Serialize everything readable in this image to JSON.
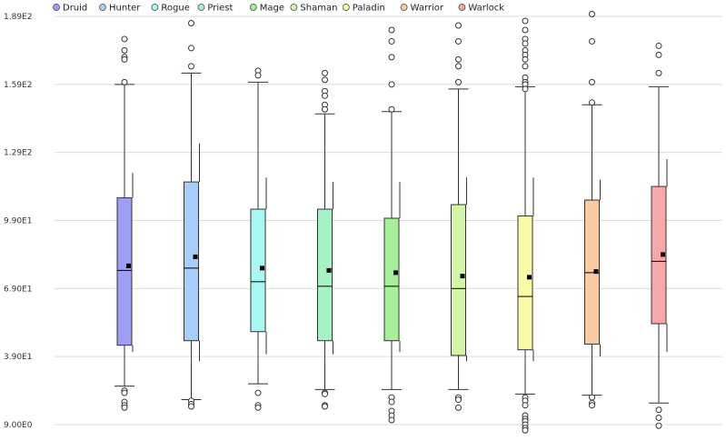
{
  "chart_data": {
    "type": "box",
    "y_ticks": [
      {
        "label": "9.00E0",
        "value": 9
      },
      {
        "label": "3.90E1",
        "value": 39
      },
      {
        "label": "6.90E1",
        "value": 69
      },
      {
        "label": "9.90E1",
        "value": 99
      },
      {
        "label": "1.29E2",
        "value": 129
      },
      {
        "label": "1.59E2",
        "value": 159
      },
      {
        "label": "1.89E2",
        "value": 189
      }
    ],
    "ylim": [
      9,
      189
    ],
    "grid": true,
    "legend_position": "top-left",
    "series": [
      {
        "name": "Druid",
        "color": "#9e9ef7",
        "edge": "#6b6bd6",
        "whisker_low": 41,
        "q1": 44,
        "median": 77,
        "q3": 109,
        "whisker_high": 120,
        "mean": 79,
        "cap_low": 26,
        "cap_high": 159,
        "outliers_low": [
          24,
          23,
          19,
          17.5,
          16.5
        ],
        "outliers_high": [
          179,
          174,
          171,
          170,
          160
        ]
      },
      {
        "name": "Hunter",
        "color": "#a7cdfa",
        "edge": "#5c8fd1",
        "whisker_low": 37,
        "q1": 46,
        "median": 78,
        "q3": 116,
        "whisker_high": 133,
        "mean": 83,
        "cap_low": 20,
        "cap_high": 164,
        "outliers_low": [
          19.5,
          18,
          17
        ],
        "outliers_high": [
          186,
          175,
          167
        ]
      },
      {
        "name": "Rogue",
        "color": "#a7f7f2",
        "edge": "#3cb8b0",
        "whisker_low": 40,
        "q1": 50,
        "median": 72,
        "q3": 104,
        "whisker_high": 118,
        "mean": 78,
        "cap_low": 27,
        "cap_high": 160,
        "outliers_low": [
          23,
          17.5,
          16.5
        ],
        "outliers_high": [
          165,
          163
        ]
      },
      {
        "name": "Priest",
        "color": "#a7f2c4",
        "edge": "#38a86a",
        "whisker_low": 40,
        "q1": 46,
        "median": 70,
        "q3": 104,
        "whisker_high": 116,
        "mean": 77,
        "cap_low": 24.5,
        "cap_high": 146,
        "outliers_low": [
          23,
          22.5,
          17.5,
          17
        ],
        "outliers_high": [
          164,
          161,
          156,
          154,
          150,
          148
        ]
      },
      {
        "name": "Mage",
        "color": "#a6f09a",
        "edge": "#4cae3e",
        "whisker_low": 41,
        "q1": 46,
        "median": 70,
        "q3": 100,
        "whisker_high": 116,
        "mean": 76,
        "cap_low": 24.5,
        "cap_high": 147,
        "outliers_low": [
          21,
          19,
          15,
          13,
          11
        ],
        "outliers_high": [
          183,
          178,
          171,
          159,
          148
        ]
      },
      {
        "name": "Shaman",
        "color": "#d4f5a6",
        "edge": "#7fb23a",
        "whisker_low": 37,
        "q1": 39.5,
        "median": 69,
        "q3": 106,
        "whisker_high": 118,
        "mean": 74.5,
        "cap_low": 24.5,
        "cap_high": 157,
        "outliers_low": [
          21,
          20,
          16.5
        ],
        "outliers_high": [
          185,
          178,
          170,
          167,
          160
        ]
      },
      {
        "name": "Paladin",
        "color": "#fafaa6",
        "edge": "#b3b33a",
        "whisker_low": 37,
        "q1": 42,
        "median": 65.5,
        "q3": 101,
        "whisker_high": 118,
        "mean": 74,
        "cap_low": 22.5,
        "cap_high": 158,
        "outliers_low": [
          21,
          19.5,
          17.5,
          13,
          11.5,
          10.5,
          9,
          7.5,
          6.5
        ],
        "outliers_high": [
          187,
          183,
          179,
          177,
          174,
          172,
          170,
          167,
          162,
          160,
          159,
          157
        ]
      },
      {
        "name": "Warrior",
        "color": "#f8cba0",
        "edge": "#d08a4c",
        "whisker_low": 39,
        "q1": 44.5,
        "median": 76,
        "q3": 108,
        "whisker_high": 117,
        "mean": 76.5,
        "cap_low": 22,
        "cap_high": 150,
        "outliers_low": [
          21,
          18.5,
          17.5
        ],
        "outliers_high": [
          190,
          178,
          160,
          151
        ]
      },
      {
        "name": "Warlock",
        "color": "#f7a7a7",
        "edge": "#c65a5a",
        "whisker_low": 41,
        "q1": 53.5,
        "median": 81,
        "q3": 114,
        "whisker_high": 126,
        "mean": 84,
        "cap_low": 18.5,
        "cap_high": 158,
        "outliers_low": [
          15.5,
          12,
          8.5
        ],
        "outliers_high": [
          176,
          172,
          164
        ]
      }
    ]
  }
}
